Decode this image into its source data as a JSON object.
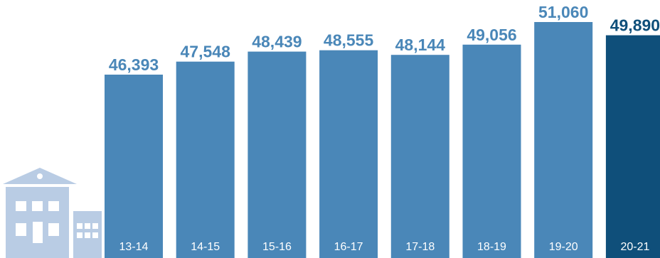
{
  "chart_data": {
    "type": "bar",
    "categories": [
      "13-14",
      "14-15",
      "15-16",
      "16-17",
      "17-18",
      "18-19",
      "19-20",
      "20-21"
    ],
    "values": [
      46393,
      47548,
      48439,
      48555,
      48144,
      49056,
      51060,
      49890
    ],
    "value_labels": [
      "46,393",
      "47,548",
      "48,439",
      "48,555",
      "48,144",
      "49,056",
      "51,060",
      "49,890"
    ],
    "title": "",
    "xlabel": "",
    "ylabel": "",
    "grid": false,
    "legend": "none",
    "highlight_index": 7
  },
  "colors": {
    "bar": "#4a87b8",
    "bar_highlight": "#0f4f7a",
    "label": "#4a87b8",
    "label_highlight": "#0f4f7a",
    "building": "#b9cce4"
  },
  "icons": {
    "decoration": "school-building-icon"
  }
}
